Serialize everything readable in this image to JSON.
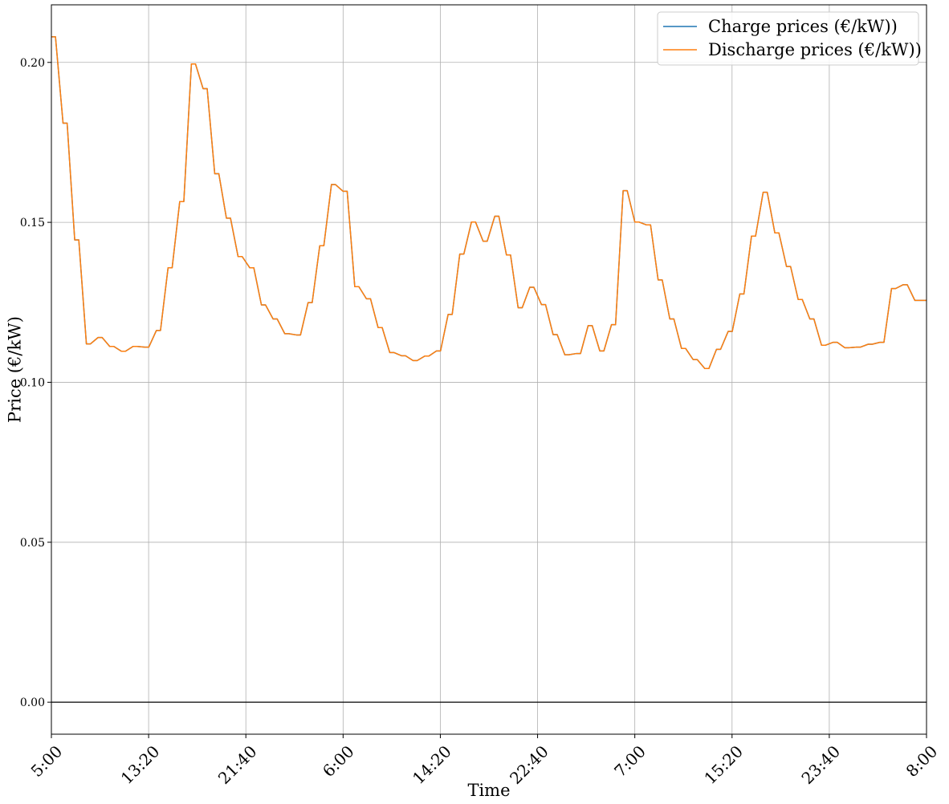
{
  "chart_data": {
    "type": "line",
    "xlabel": "Time",
    "ylabel": "Price (€/kW)",
    "x_tick_labels": [
      "5:00",
      "13:20",
      "21:40",
      "6:00",
      "14:20",
      "22:40",
      "7:00",
      "15:20",
      "23:40",
      "8:00"
    ],
    "x_range_steps": [
      0,
      75
    ],
    "y_ticks": [
      0.0,
      0.05,
      0.1,
      0.15,
      0.2
    ],
    "y_tick_labels": [
      "0.00",
      "0.05",
      "0.10",
      "0.15",
      "0.20"
    ],
    "ylim": [
      -0.01,
      0.218
    ],
    "grid": true,
    "legend_position": "top-right",
    "zero_line": true,
    "series": [
      {
        "name": "Charge prices (€/kW))",
        "color": "#1f77b4",
        "step_values": [
          0.208,
          0.181,
          0.1445,
          0.112,
          0.114,
          0.1112,
          0.1097,
          0.1112,
          0.111,
          0.1162,
          0.1358,
          0.1565,
          0.1995,
          0.1918,
          0.1652,
          0.1513,
          0.1393,
          0.1358,
          0.1242,
          0.1198,
          0.1152,
          0.1148,
          0.1249,
          0.1427,
          0.1618,
          0.1597,
          0.1299,
          0.1261,
          0.1171,
          0.1093,
          0.1083,
          0.1068,
          0.1082,
          0.1098,
          0.1212,
          0.1401,
          0.1501,
          0.1441,
          0.1519,
          0.1398,
          0.1233,
          0.1297,
          0.1243,
          0.1149,
          0.1086,
          0.109,
          0.1177,
          0.1098,
          0.118,
          0.1599,
          0.1501,
          0.1492,
          0.132,
          0.1198,
          0.1106,
          0.1071,
          0.1043,
          0.1103,
          0.1159,
          0.1276,
          0.1457,
          0.1594,
          0.1467,
          0.1362,
          0.1259,
          0.1198,
          0.1116,
          0.1125,
          0.1108,
          0.111,
          0.1119,
          0.1125,
          0.1293,
          0.1305,
          0.1256,
          0.1256
        ]
      },
      {
        "name": "Discharge prices (€/kW))",
        "color": "#ff7f0e",
        "step_values": [
          0.208,
          0.181,
          0.1445,
          0.112,
          0.114,
          0.1112,
          0.1097,
          0.1112,
          0.111,
          0.1162,
          0.1358,
          0.1565,
          0.1995,
          0.1918,
          0.1652,
          0.1513,
          0.1393,
          0.1358,
          0.1242,
          0.1198,
          0.1152,
          0.1148,
          0.1249,
          0.1427,
          0.1618,
          0.1597,
          0.1299,
          0.1261,
          0.1171,
          0.1093,
          0.1083,
          0.1068,
          0.1082,
          0.1098,
          0.1212,
          0.1401,
          0.1501,
          0.1441,
          0.1519,
          0.1398,
          0.1233,
          0.1297,
          0.1243,
          0.1149,
          0.1086,
          0.109,
          0.1177,
          0.1098,
          0.118,
          0.1599,
          0.1501,
          0.1492,
          0.132,
          0.1198,
          0.1106,
          0.1071,
          0.1043,
          0.1103,
          0.1159,
          0.1276,
          0.1457,
          0.1594,
          0.1467,
          0.1362,
          0.1259,
          0.1198,
          0.1116,
          0.1125,
          0.1108,
          0.111,
          0.1119,
          0.1125,
          0.1293,
          0.1305,
          0.1256,
          0.1256
        ]
      }
    ]
  }
}
